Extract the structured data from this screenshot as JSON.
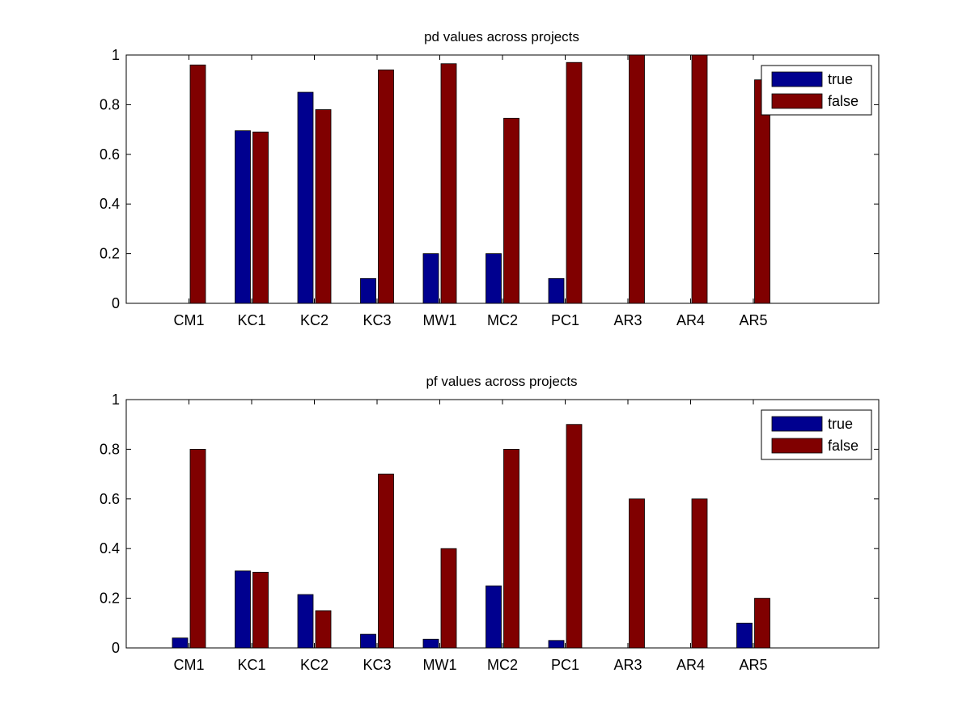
{
  "chart_data": [
    {
      "type": "bar",
      "title": "pd values across projects",
      "xlabel": "",
      "ylabel": "",
      "categories": [
        "CM1",
        "KC1",
        "KC2",
        "KC3",
        "MW1",
        "MC2",
        "PC1",
        "AR3",
        "AR4",
        "AR5"
      ],
      "xlim": [
        0,
        12
      ],
      "ylim": [
        0,
        1
      ],
      "yticks": [
        "0",
        "0.2",
        "0.4",
        "0.6",
        "0.8",
        "1"
      ],
      "grid": false,
      "legend_position": "top-right",
      "series": [
        {
          "name": "true",
          "color": "#00008f",
          "values": [
            0,
            0.695,
            0.85,
            0.1,
            0.2,
            0.2,
            0.1,
            0,
            0,
            0
          ]
        },
        {
          "name": "false",
          "color": "#800000",
          "values": [
            0.96,
            0.69,
            0.78,
            0.94,
            0.965,
            0.745,
            0.97,
            1.0,
            1.0,
            0.9
          ]
        }
      ]
    },
    {
      "type": "bar",
      "title": "pf values across projects",
      "xlabel": "",
      "ylabel": "",
      "categories": [
        "CM1",
        "KC1",
        "KC2",
        "KC3",
        "MW1",
        "MC2",
        "PC1",
        "AR3",
        "AR4",
        "AR5"
      ],
      "xlim": [
        0,
        12
      ],
      "ylim": [
        0,
        1
      ],
      "yticks": [
        "0",
        "0.2",
        "0.4",
        "0.6",
        "0.8",
        "1"
      ],
      "grid": false,
      "legend_position": "top-right",
      "series": [
        {
          "name": "true",
          "color": "#00008f",
          "values": [
            0.04,
            0.31,
            0.215,
            0.055,
            0.035,
            0.25,
            0.03,
            0,
            0,
            0.1
          ]
        },
        {
          "name": "false",
          "color": "#800000",
          "values": [
            0.8,
            0.305,
            0.15,
            0.7,
            0.4,
            0.8,
            0.9,
            0.6,
            0.6,
            0.2
          ]
        }
      ]
    }
  ]
}
